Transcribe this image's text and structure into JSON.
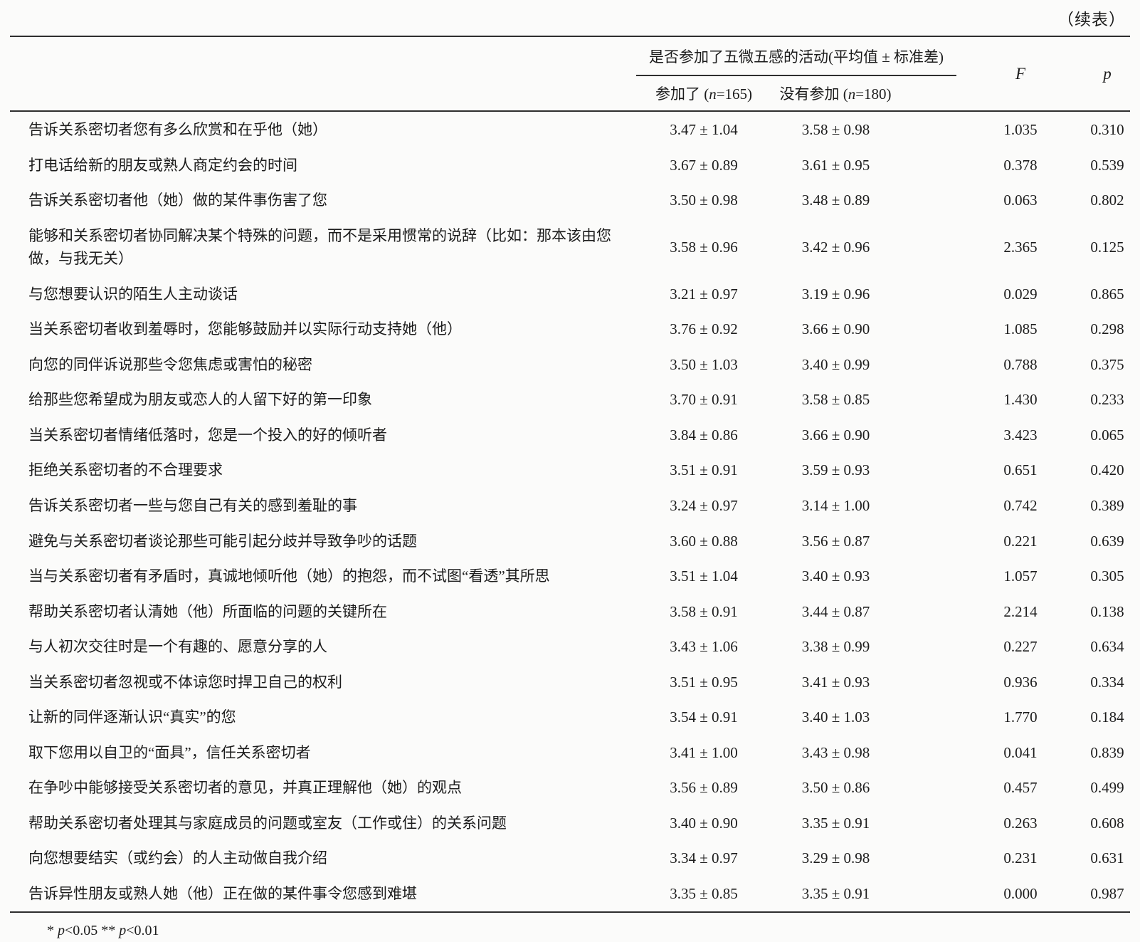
{
  "page": {
    "continued_label": "（续表）",
    "footnote": {
      "s1": "* ",
      "p1": "p",
      "s2": "<0.05 ** ",
      "p2": "p",
      "s3": "<0.01"
    },
    "colors": {
      "text": "#1c1c1c",
      "rule": "#2e2e2e",
      "background": "#fbfbfa"
    }
  },
  "table": {
    "header": {
      "group_title": "是否参加了五微五感的活动(平均值 ± 标准差)",
      "participated": {
        "prefix": "参加了 (",
        "n": "n",
        "suffix": "=165)"
      },
      "not_participated": {
        "prefix": "没有参加 (",
        "n": "n",
        "suffix": "=180)"
      },
      "f_label": "F",
      "p_label": "p"
    },
    "rows": [
      {
        "item": "告诉关系密切者您有多么欣赏和在乎他（她）",
        "participated": "3.47 ± 1.04",
        "not_participated": "3.58 ± 0.98",
        "f": "1.035",
        "p": "0.310"
      },
      {
        "item": "打电话给新的朋友或熟人商定约会的时间",
        "participated": "3.67 ± 0.89",
        "not_participated": "3.61 ± 0.95",
        "f": "0.378",
        "p": "0.539"
      },
      {
        "item": "告诉关系密切者他（她）做的某件事伤害了您",
        "participated": "3.50 ± 0.98",
        "not_participated": "3.48 ± 0.89",
        "f": "0.063",
        "p": "0.802"
      },
      {
        "item": "能够和关系密切者协同解决某个特殊的问题，而不是采用惯常的说辞（比如：那本该由您做，与我无关）",
        "participated": "3.58 ± 0.96",
        "not_participated": "3.42 ± 0.96",
        "f": "2.365",
        "p": "0.125"
      },
      {
        "item": "与您想要认识的陌生人主动谈话",
        "participated": "3.21 ± 0.97",
        "not_participated": "3.19 ± 0.96",
        "f": "0.029",
        "p": "0.865"
      },
      {
        "item": "当关系密切者收到羞辱时，您能够鼓励并以实际行动支持她（他）",
        "participated": "3.76 ± 0.92",
        "not_participated": "3.66 ± 0.90",
        "f": "1.085",
        "p": "0.298"
      },
      {
        "item": "向您的同伴诉说那些令您焦虑或害怕的秘密",
        "participated": "3.50 ± 1.03",
        "not_participated": "3.40 ± 0.99",
        "f": "0.788",
        "p": "0.375"
      },
      {
        "item": "给那些您希望成为朋友或恋人的人留下好的第一印象",
        "participated": "3.70 ± 0.91",
        "not_participated": "3.58 ± 0.85",
        "f": "1.430",
        "p": "0.233"
      },
      {
        "item": "当关系密切者情绪低落时，您是一个投入的好的倾听者",
        "participated": "3.84 ± 0.86",
        "not_participated": "3.66 ± 0.90",
        "f": "3.423",
        "p": "0.065"
      },
      {
        "item": "拒绝关系密切者的不合理要求",
        "participated": "3.51 ± 0.91",
        "not_participated": "3.59 ± 0.93",
        "f": "0.651",
        "p": "0.420"
      },
      {
        "item": "告诉关系密切者一些与您自己有关的感到羞耻的事",
        "participated": "3.24 ± 0.97",
        "not_participated": "3.14 ± 1.00",
        "f": "0.742",
        "p": "0.389"
      },
      {
        "item": "避免与关系密切者谈论那些可能引起分歧并导致争吵的话题",
        "participated": "3.60 ± 0.88",
        "not_participated": "3.56 ± 0.87",
        "f": "0.221",
        "p": "0.639"
      },
      {
        "item": "当与关系密切者有矛盾时，真诚地倾听他（她）的抱怨，而不试图“看透”其所思",
        "participated": "3.51 ± 1.04",
        "not_participated": "3.40 ± 0.93",
        "f": "1.057",
        "p": "0.305"
      },
      {
        "item": "帮助关系密切者认清她（他）所面临的问题的关键所在",
        "participated": "3.58 ± 0.91",
        "not_participated": "3.44 ± 0.87",
        "f": "2.214",
        "p": "0.138"
      },
      {
        "item": "与人初次交往时是一个有趣的、愿意分享的人",
        "participated": "3.43 ± 1.06",
        "not_participated": "3.38 ± 0.99",
        "f": "0.227",
        "p": "0.634"
      },
      {
        "item": "当关系密切者忽视或不体谅您时捍卫自己的权利",
        "participated": "3.51 ± 0.95",
        "not_participated": "3.41 ± 0.93",
        "f": "0.936",
        "p": "0.334"
      },
      {
        "item": "让新的同伴逐渐认识“真实”的您",
        "participated": "3.54 ± 0.91",
        "not_participated": "3.40 ± 1.03",
        "f": "1.770",
        "p": "0.184"
      },
      {
        "item": "取下您用以自卫的“面具”，信任关系密切者",
        "participated": "3.41 ± 1.00",
        "not_participated": "3.43 ± 0.98",
        "f": "0.041",
        "p": "0.839"
      },
      {
        "item": "在争吵中能够接受关系密切者的意见，并真正理解他（她）的观点",
        "participated": "3.56 ± 0.89",
        "not_participated": "3.50 ± 0.86",
        "f": "0.457",
        "p": "0.499"
      },
      {
        "item": "帮助关系密切者处理其与家庭成员的问题或室友（工作或住）的关系问题",
        "participated": "3.40 ± 0.90",
        "not_participated": "3.35 ± 0.91",
        "f": "0.263",
        "p": "0.608"
      },
      {
        "item": "向您想要结实（或约会）的人主动做自我介绍",
        "participated": "3.34 ± 0.97",
        "not_participated": "3.29 ± 0.98",
        "f": "0.231",
        "p": "0.631"
      },
      {
        "item": "告诉异性朋友或熟人她（他）正在做的某件事令您感到难堪",
        "participated": "3.35 ± 0.85",
        "not_participated": "3.35 ± 0.91",
        "f": "0.000",
        "p": "0.987"
      }
    ]
  }
}
